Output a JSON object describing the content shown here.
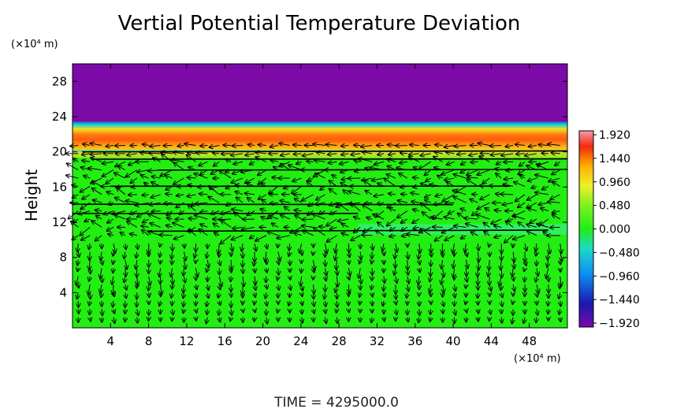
{
  "chart_data": {
    "type": "heatmap",
    "title": "Vertial Potential Temperature Deviation",
    "ylabel": "Height",
    "x_unit_label": "(×10⁴ m)",
    "y_unit_label": "(×10⁴ m)",
    "xlim": [
      0,
      52
    ],
    "ylim": [
      0,
      30
    ],
    "x_ticks": [
      4,
      8,
      12,
      16,
      20,
      24,
      28,
      32,
      36,
      40,
      44,
      48
    ],
    "y_ticks": [
      4,
      8,
      12,
      16,
      20,
      24,
      28
    ],
    "colorbar": {
      "labels": [
        "1.920",
        "1.440",
        "0.960",
        "0.480",
        "0.000",
        "−0.480",
        "−0.960",
        "−1.440",
        "−1.920"
      ],
      "min": -1.92,
      "max": 1.92
    },
    "field_description": "uniform deviation ≈ 0 below y≈19; warm positive band (up to ≈1.9) between y≈19.5 and y≈23; minimum (≈ −1.9) above y≈23.5",
    "vector_field": "wind arrows overlaid on the domain; strong westward flow near heights 11, 13, 14, 16, 18, 19, 20"
  },
  "footer": {
    "time_label": "TIME  =  4295000.0"
  }
}
